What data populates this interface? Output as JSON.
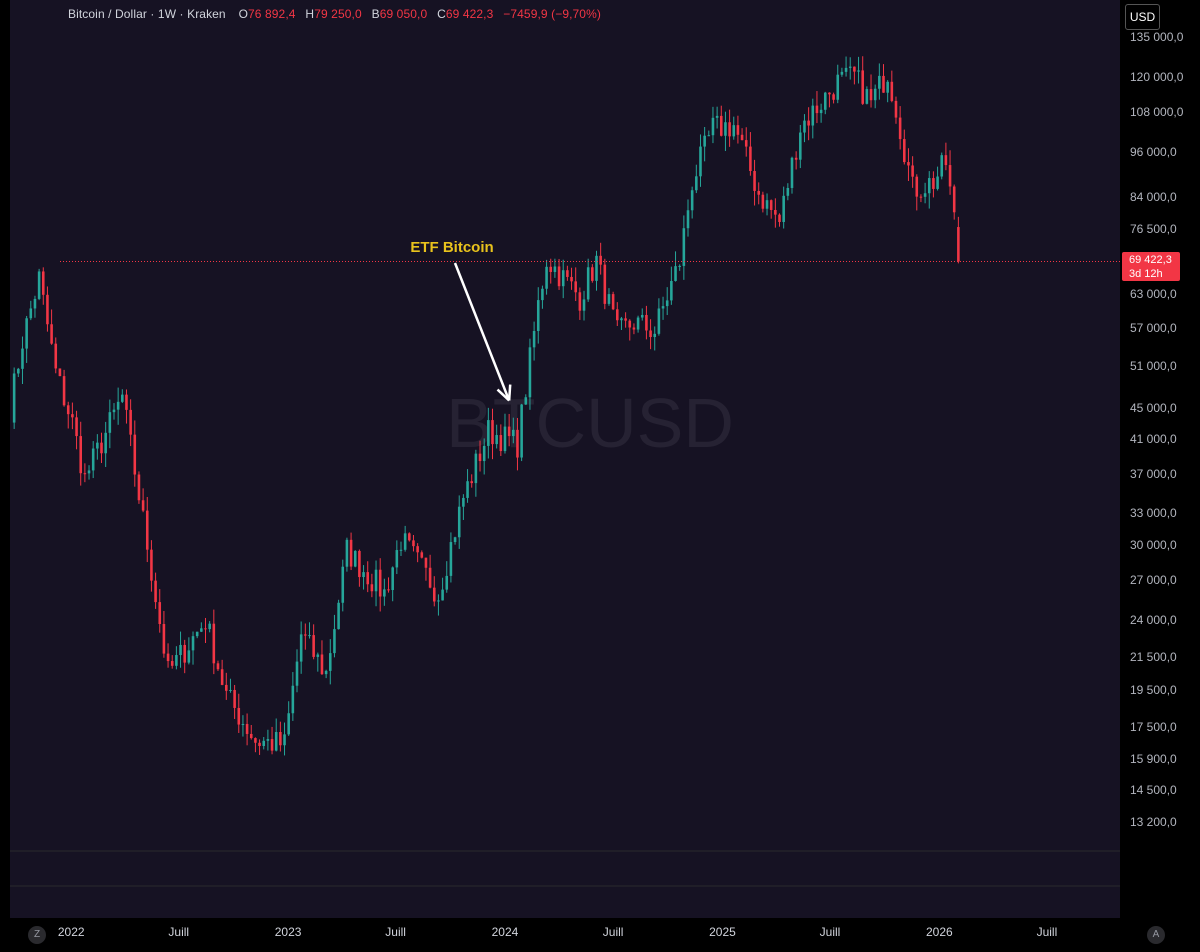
{
  "legend": {
    "symbol": "Bitcoin / Dollar · 1W · Kraken",
    "o_label": "O",
    "o_value": "76 892,4",
    "h_label": "H",
    "h_value": "79 250,0",
    "l_label": "B",
    "l_value": "69 050,0",
    "c_label": "C",
    "c_value": "69 422,3",
    "change": "−7459,9 (−9,70%)"
  },
  "currency_button": "USD",
  "current_price": {
    "price": "69 422,3",
    "countdown": "3d 12h",
    "color": "#f23645"
  },
  "watermark": "BTCUSD",
  "annotation": {
    "text": "ETF Bitcoin",
    "color": "#e8c21c"
  },
  "corner_buttons": {
    "left": "Z",
    "right": "A"
  },
  "colors": {
    "up": "#26a69a",
    "down": "#f23645",
    "background": "#161223"
  },
  "chart_data": {
    "type": "candlestick",
    "title": "Bitcoin / Dollar · 1W · Kraken",
    "scale": "log",
    "y_ticks": [
      13200,
      14500,
      15900,
      17500,
      19500,
      21500,
      24000,
      27000,
      30000,
      33000,
      37000,
      41000,
      45000,
      51000,
      57000,
      63000,
      76500,
      84000,
      96000,
      108000,
      120000,
      135000
    ],
    "y_tick_labels": [
      "13 200,0",
      "14 500,0",
      "15 900,0",
      "17 500,0",
      "19 500,0",
      "21 500,0",
      "24 000,0",
      "27 000,0",
      "30 000,0",
      "33 000,0",
      "37 000,0",
      "41 000,0",
      "45 000,0",
      "51 000,0",
      "57 000,0",
      "63 000,0",
      "76 500,0",
      "84 000,0",
      "96 000,0",
      "108 000,0",
      "120 000,0",
      "135 000,0"
    ],
    "x_labels": [
      {
        "label": "2022",
        "date": "2022-01-01"
      },
      {
        "label": "Juill",
        "date": "2022-07-01"
      },
      {
        "label": "2023",
        "date": "2023-01-01"
      },
      {
        "label": "Juill",
        "date": "2023-07-01"
      },
      {
        "label": "2024",
        "date": "2024-01-01"
      },
      {
        "label": "Juill",
        "date": "2024-07-01"
      },
      {
        "label": "2025",
        "date": "2025-01-01"
      },
      {
        "label": "Juill",
        "date": "2025-07-01"
      },
      {
        "label": "2026",
        "date": "2026-01-01"
      },
      {
        "label": "Juill",
        "date": "2026-07-01"
      }
    ],
    "x_range": [
      "2021-09-20",
      "2026-11-01"
    ],
    "annotation_date": "2024-01-08",
    "last_close": 69422.3,
    "anchors": [
      [
        "2021-09-20",
        45000
      ],
      [
        "2021-10-11",
        55000
      ],
      [
        "2021-11-08",
        66000
      ],
      [
        "2021-12-06",
        50000
      ],
      [
        "2022-01-03",
        43000
      ],
      [
        "2022-01-24",
        36500
      ],
      [
        "2022-03-28",
        46500
      ],
      [
        "2022-05-09",
        30000
      ],
      [
        "2022-06-13",
        20500
      ],
      [
        "2022-08-15",
        24000
      ],
      [
        "2022-09-19",
        19200
      ],
      [
        "2022-11-07",
        16800
      ],
      [
        "2022-12-26",
        16600
      ],
      [
        "2023-01-23",
        23000
      ],
      [
        "2023-03-06",
        20500
      ],
      [
        "2023-04-10",
        29500
      ],
      [
        "2023-06-12",
        26000
      ],
      [
        "2023-07-10",
        30500
      ],
      [
        "2023-09-11",
        26000
      ],
      [
        "2023-10-23",
        34500
      ],
      [
        "2023-12-04",
        42000
      ],
      [
        "2024-01-22",
        40500
      ],
      [
        "2024-02-26",
        61000
      ],
      [
        "2024-03-11",
        70000
      ],
      [
        "2024-05-06",
        62500
      ],
      [
        "2024-06-03",
        69500
      ],
      [
        "2024-07-08",
        56000
      ],
      [
        "2024-08-05",
        58000
      ],
      [
        "2024-09-09",
        56500
      ],
      [
        "2024-10-21",
        69500
      ],
      [
        "2024-11-11",
        88000
      ],
      [
        "2024-12-16",
        103000
      ],
      [
        "2025-01-20",
        104000
      ],
      [
        "2025-03-03",
        85000
      ],
      [
        "2025-04-07",
        78000
      ],
      [
        "2025-05-12",
        103500
      ],
      [
        "2025-07-14",
        118000
      ],
      [
        "2025-08-11",
        120000
      ],
      [
        "2025-09-08",
        111000
      ],
      [
        "2025-10-06",
        122000
      ],
      [
        "2025-10-20",
        110000
      ],
      [
        "2025-11-17",
        86000
      ],
      [
        "2025-12-22",
        88000
      ],
      [
        "2026-01-12",
        93000
      ],
      [
        "2026-01-26",
        78500
      ],
      [
        "2026-02-02",
        69422.3
      ]
    ]
  }
}
